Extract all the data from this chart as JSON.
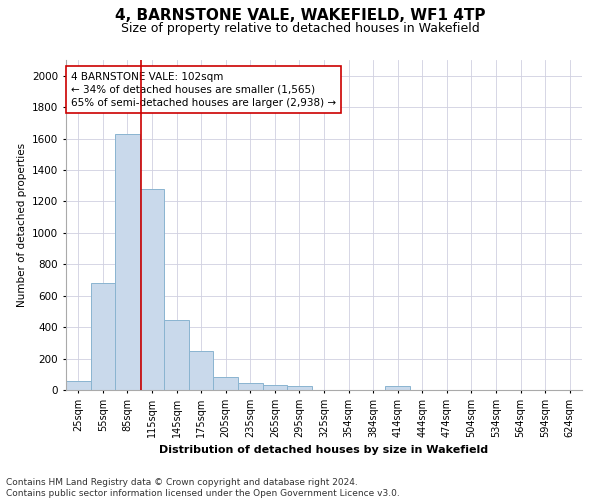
{
  "title": "4, BARNSTONE VALE, WAKEFIELD, WF1 4TP",
  "subtitle": "Size of property relative to detached houses in Wakefield",
  "xlabel": "Distribution of detached houses by size in Wakefield",
  "ylabel": "Number of detached properties",
  "categories": [
    "25sqm",
    "55sqm",
    "85sqm",
    "115sqm",
    "145sqm",
    "175sqm",
    "205sqm",
    "235sqm",
    "265sqm",
    "295sqm",
    "325sqm",
    "354sqm",
    "384sqm",
    "414sqm",
    "444sqm",
    "474sqm",
    "504sqm",
    "534sqm",
    "564sqm",
    "594sqm",
    "624sqm"
  ],
  "values": [
    60,
    680,
    1630,
    1280,
    445,
    250,
    85,
    45,
    30,
    25,
    0,
    0,
    0,
    25,
    0,
    0,
    0,
    0,
    0,
    0,
    0
  ],
  "bar_color": "#c9d9eb",
  "bar_edge_color": "#8ab4d0",
  "grid_color": "#d0d0e0",
  "bg_color": "#ffffff",
  "property_line_color": "#cc0000",
  "property_line_x": 2.567,
  "annotation_text": "4 BARNSTONE VALE: 102sqm\n← 34% of detached houses are smaller (1,565)\n65% of semi-detached houses are larger (2,938) →",
  "annotation_box_color": "#cc0000",
  "ylim": [
    0,
    2100
  ],
  "yticks": [
    0,
    200,
    400,
    600,
    800,
    1000,
    1200,
    1400,
    1600,
    1800,
    2000
  ],
  "footnote": "Contains HM Land Registry data © Crown copyright and database right 2024.\nContains public sector information licensed under the Open Government Licence v3.0.",
  "title_fontsize": 11,
  "subtitle_fontsize": 9,
  "annotation_fontsize": 7.5,
  "footnote_fontsize": 6.5,
  "ylabel_fontsize": 7.5,
  "xlabel_fontsize": 8,
  "tick_fontsize": 7,
  "ytick_fontsize": 7.5
}
